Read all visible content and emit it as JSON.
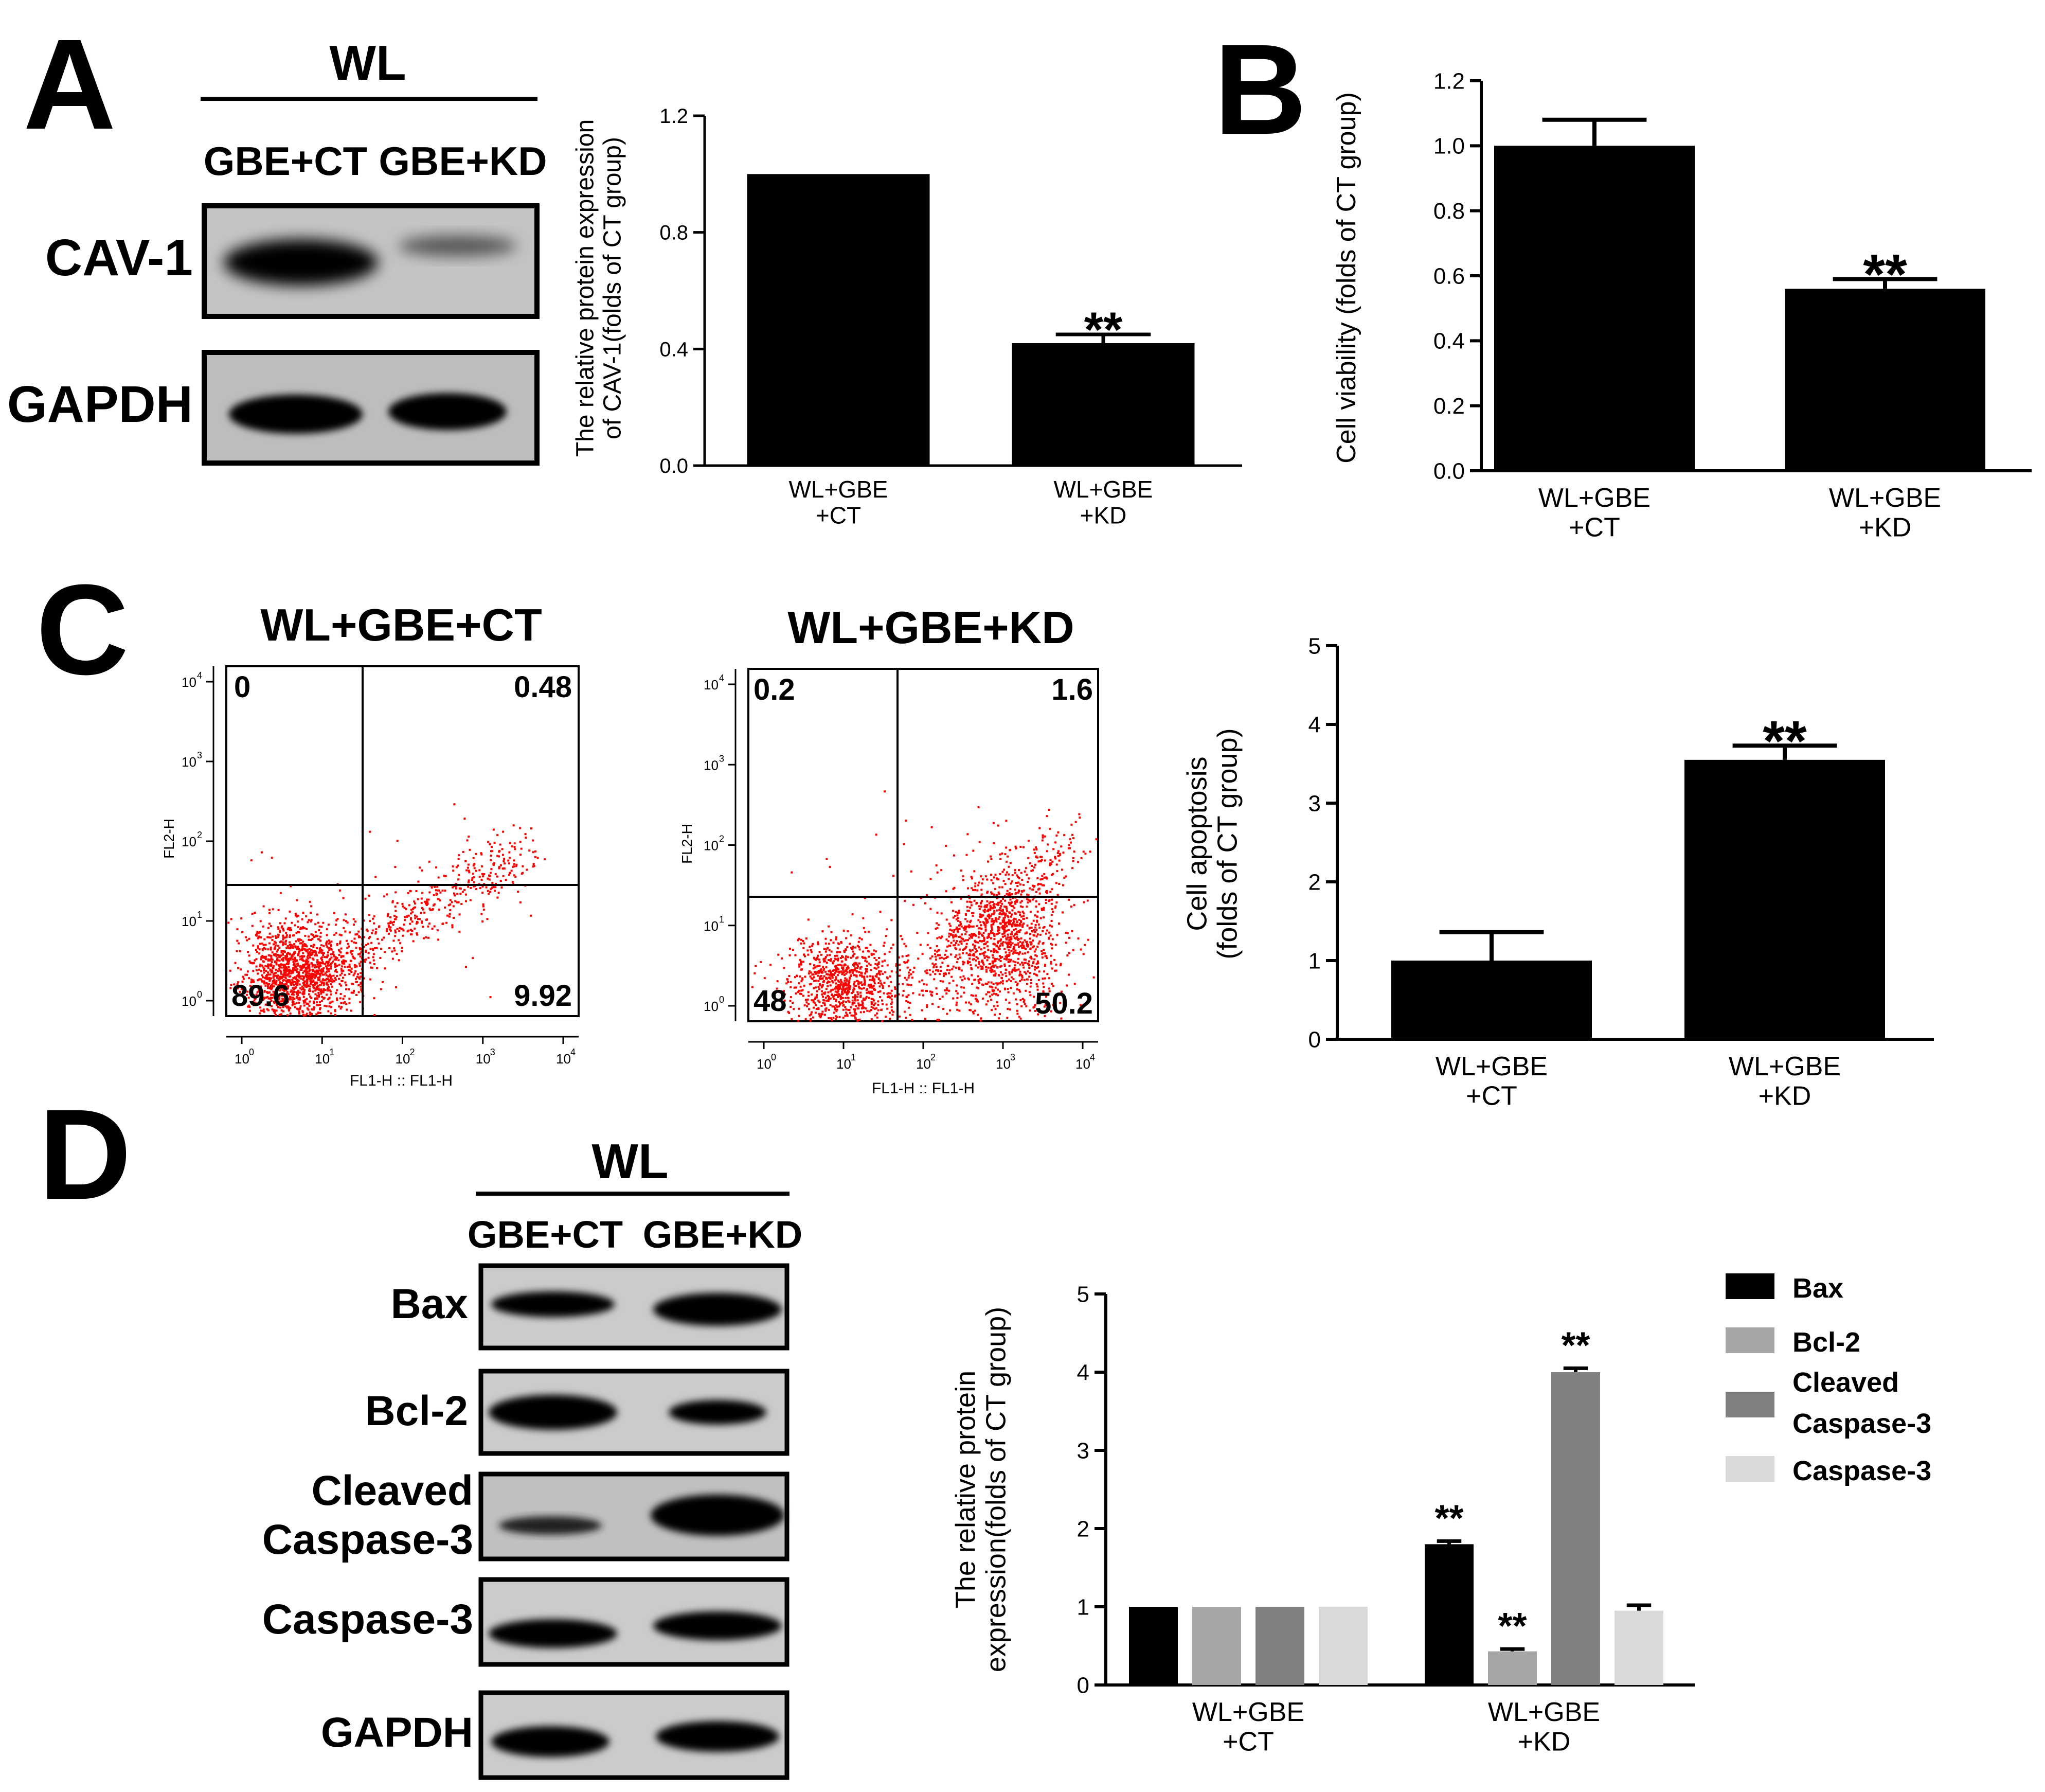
{
  "figure": {
    "panel_labels": [
      "A",
      "B",
      "C",
      "D"
    ],
    "colors": {
      "bar_black": "#000000",
      "bax": "#000000",
      "bcl2": "#a5a6a8",
      "cleaved_casp3": "#808080",
      "casp3": "#d9d9d9",
      "dot_red": "#ff0000",
      "blot_bg": "#bcbcbc"
    }
  },
  "panelA": {
    "blot": {
      "header": "WL",
      "lanes": [
        "GBE+CT",
        "GBE+KD"
      ],
      "rows": [
        "CAV-1",
        "GAPDH"
      ]
    }
  },
  "panelC": {
    "flow_plots": [
      {
        "title": "WL+GBE+CT",
        "quadrants": {
          "ul": "0",
          "ur": "0.48",
          "ll": "89.6",
          "lr": "9.92"
        },
        "xlabel": "FL1-H :: FL1-H",
        "ylabel": "FL2-H",
        "ticks": [
          "0",
          "1",
          "2",
          "3",
          "4"
        ]
      },
      {
        "title": "WL+GBE+KD",
        "quadrants": {
          "ul": "0.2",
          "ur": "1.6",
          "ll": "48",
          "lr": "50.2"
        },
        "xlabel": "FL1-H :: FL1-H",
        "ylabel": "FL2-H",
        "ticks": [
          "0",
          "1",
          "2",
          "3",
          "4"
        ]
      }
    ]
  },
  "panelD": {
    "blot": {
      "header": "WL",
      "lanes": [
        "GBE+CT",
        "GBE+KD"
      ],
      "rows": [
        "Bax",
        "Bcl-2",
        "Cleaved Caspase-3",
        "Caspase-3",
        "GAPDH"
      ]
    }
  },
  "chart_data": [
    {
      "id": "A",
      "type": "bar",
      "categories": [
        "WL+GBE +CT",
        "WL+GBE +KD"
      ],
      "values": [
        1.0,
        0.42
      ],
      "errors": [
        0,
        0.03
      ],
      "significance": [
        "",
        "**"
      ],
      "ylabel": "The relative protein expression of CAV-1(folds of CT group)",
      "ylim": [
        0,
        1.2
      ],
      "yticks": [
        "0.0",
        "0.4",
        "0.8",
        "1.2"
      ]
    },
    {
      "id": "B",
      "type": "bar",
      "categories": [
        "WL+GBE +CT",
        "WL+GBE +KD"
      ],
      "values": [
        1.0,
        0.56
      ],
      "errors": [
        0.08,
        0.03
      ],
      "significance": [
        "",
        "**"
      ],
      "ylabel": "Cell viability (folds of CT group)",
      "ylim": [
        0,
        1.2
      ],
      "yticks": [
        "0.0",
        "0.2",
        "0.4",
        "0.6",
        "0.8",
        "1.0",
        "1.2"
      ]
    },
    {
      "id": "C",
      "type": "bar",
      "categories": [
        "WL+GBE +CT",
        "WL+GBE +KD"
      ],
      "values": [
        1.0,
        3.55
      ],
      "errors": [
        0.36,
        0.18
      ],
      "significance": [
        "",
        "**"
      ],
      "ylabel": "Cell apoptosis (folds of CT group)",
      "ylim": [
        0,
        5
      ],
      "yticks": [
        "0",
        "1",
        "2",
        "3",
        "4",
        "5"
      ]
    },
    {
      "id": "D",
      "type": "bar",
      "categories": [
        "WL+GBE +CT",
        "WL+GBE +KD"
      ],
      "series": [
        {
          "name": "Bax",
          "values": [
            1.0,
            1.8
          ],
          "errors": [
            0,
            0.04
          ],
          "significance": [
            "",
            "**"
          ]
        },
        {
          "name": "Bcl-2",
          "values": [
            1.0,
            0.43
          ],
          "errors": [
            0,
            0.03
          ],
          "significance": [
            "",
            "**"
          ]
        },
        {
          "name": "Cleaved Caspase-3",
          "values": [
            1.0,
            4.0
          ],
          "errors": [
            0,
            0.05
          ],
          "significance": [
            "",
            "**"
          ]
        },
        {
          "name": "Caspase-3",
          "values": [
            1.0,
            0.95
          ],
          "errors": [
            0,
            0.07
          ],
          "significance": [
            "",
            ""
          ]
        }
      ],
      "ylabel": "The relative protein expression(folds of CT group)",
      "ylim": [
        0,
        5
      ],
      "yticks": [
        "0",
        "1",
        "2",
        "3",
        "4",
        "5"
      ],
      "legend_position": "right"
    }
  ]
}
